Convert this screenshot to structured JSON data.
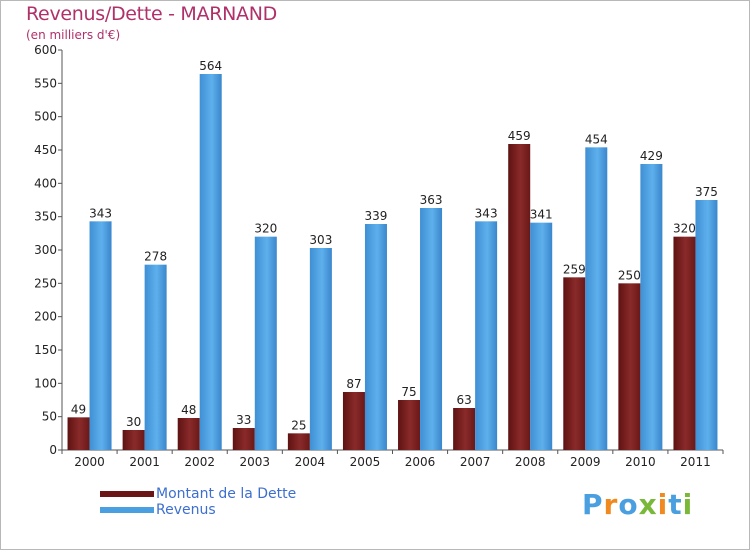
{
  "title": "Revenus/Dette - MARNAND",
  "subtitle": "(en milliers d'€)",
  "logo": "Proxiti",
  "colors": {
    "debt": "#7a1e1e",
    "revenue": "#4a9fe0",
    "title": "#b0306a",
    "legend_text": "#3d6fcf"
  },
  "chart_data": {
    "type": "bar",
    "title": "Revenus/Dette - MARNAND",
    "subtitle": "(en milliers d'€)",
    "categories": [
      "2000",
      "2001",
      "2002",
      "2003",
      "2004",
      "2005",
      "2006",
      "2007",
      "2008",
      "2009",
      "2010",
      "2011"
    ],
    "series": [
      {
        "name": "Montant de la Dette",
        "values": [
          49,
          30,
          48,
          33,
          25,
          87,
          75,
          63,
          459,
          259,
          250,
          320
        ]
      },
      {
        "name": "Revenus",
        "values": [
          343,
          278,
          564,
          320,
          303,
          339,
          363,
          343,
          341,
          454,
          429,
          375
        ]
      }
    ],
    "ylim": [
      0,
      600
    ],
    "yticks": [
      0,
      50,
      100,
      150,
      200,
      250,
      300,
      350,
      400,
      450,
      500,
      550,
      600
    ],
    "grid": false,
    "legend_position": "bottom-left"
  }
}
